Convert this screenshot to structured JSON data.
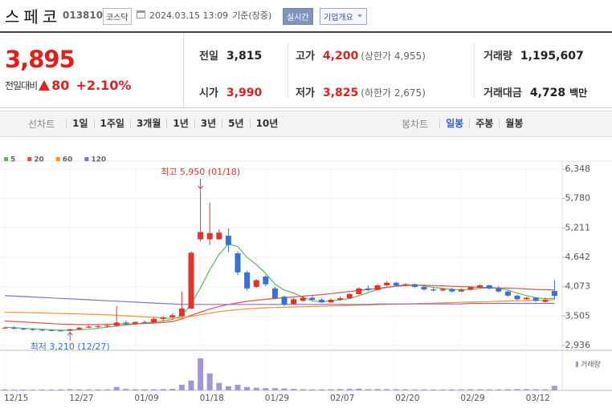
{
  "header": {
    "name": "스페코",
    "code": "013810",
    "market": "코스닥",
    "datetime": "2024.03.15 13:09",
    "basis": "기준(장중)",
    "realtime_button": "실시간",
    "company_button": "기업개요"
  },
  "quote": {
    "price": "3,895",
    "change_label": "전일대비",
    "change": "80",
    "rate": "+2.10%",
    "color": "#e0201c"
  },
  "stats": [
    {
      "label": "전일",
      "value": "3,815",
      "color": "#222222"
    },
    {
      "label": "고가",
      "value": "4,200",
      "note": "(상한가 4,955)",
      "color": "#e0201c"
    },
    {
      "label": "거래량",
      "value": "1,195,607",
      "color": "#222222"
    },
    {
      "label": "시가",
      "value": "3,990",
      "color": "#e0201c"
    },
    {
      "label": "저가",
      "value": "3,825",
      "note": "(하한가 2,675)",
      "color": "#e0201c"
    },
    {
      "label": "거래대금",
      "value": "4,728",
      "note": "백만",
      "color": "#222222"
    }
  ],
  "period_tabs": {
    "label": "선차트",
    "items": [
      "1일",
      "1주일",
      "3개월",
      "1년",
      "3년",
      "5년",
      "10년"
    ]
  },
  "candle_tabs": {
    "label": "봉차트",
    "items": [
      "일봉",
      "주봉",
      "월봉"
    ],
    "active": 0
  },
  "chart_data": {
    "type": "candlestick",
    "categories": [
      "12/15",
      null,
      null,
      null,
      null,
      null,
      null,
      "12/27",
      null,
      null,
      null,
      null,
      null,
      null,
      "01/09",
      null,
      null,
      null,
      null,
      null,
      null,
      "01/18",
      null,
      null,
      null,
      null,
      null,
      null,
      "01/29",
      null,
      null,
      null,
      null,
      null,
      null,
      "02/07",
      null,
      null,
      null,
      null,
      null,
      null,
      "02/20",
      null,
      null,
      null,
      null,
      null,
      null,
      "02/29",
      null,
      null,
      null,
      null,
      null,
      null,
      "03/12",
      null,
      null,
      null
    ],
    "open": [
      3270,
      3280,
      3260,
      3250,
      3240,
      3230,
      3225,
      3220,
      3250,
      3280,
      3300,
      3310,
      3320,
      3380,
      3360,
      3390,
      3380,
      3450,
      3480,
      3500,
      3650,
      4990,
      4990,
      4990,
      5060,
      4720,
      4350,
      4070,
      4270,
      4040,
      3880,
      3740,
      3800,
      3860,
      3820,
      3770,
      3820,
      3850,
      3930,
      4040,
      4010,
      4100,
      4150,
      4100,
      4120,
      4070,
      4020,
      4000,
      4030,
      3980,
      4020,
      4060,
      4100,
      4040,
      3980,
      3900,
      3830,
      3860,
      3780,
      3990
    ],
    "high": [
      3300,
      3310,
      3280,
      3270,
      3260,
      3250,
      3240,
      3260,
      3290,
      3320,
      3330,
      3340,
      3700,
      3420,
      3400,
      3420,
      3480,
      3500,
      3560,
      3980,
      4760,
      5950,
      5700,
      5180,
      5200,
      4760,
      4380,
      4220,
      4300,
      4070,
      3900,
      3850,
      3880,
      3900,
      3850,
      3850,
      3880,
      3950,
      4060,
      4100,
      4120,
      4180,
      4170,
      4140,
      4130,
      4100,
      4060,
      4050,
      4050,
      4040,
      4080,
      4120,
      4110,
      4090,
      4000,
      3920,
      3870,
      3870,
      3860,
      4200
    ],
    "low": [
      3250,
      3250,
      3230,
      3220,
      3215,
      3215,
      3215,
      3210,
      3240,
      3270,
      3280,
      3290,
      3300,
      3330,
      3340,
      3360,
      3370,
      3400,
      3460,
      3480,
      3640,
      4950,
      4880,
      4980,
      4740,
      4300,
      4000,
      4050,
      4080,
      3830,
      3700,
      3720,
      3780,
      3800,
      3760,
      3760,
      3800,
      3840,
      3920,
      3990,
      4000,
      4080,
      4080,
      4080,
      4050,
      4000,
      3980,
      3980,
      3960,
      3970,
      4000,
      4040,
      4020,
      3960,
      3880,
      3810,
      3820,
      3780,
      3770,
      3825
    ],
    "close": [
      3280,
      3260,
      3250,
      3240,
      3230,
      3225,
      3220,
      3250,
      3280,
      3300,
      3310,
      3320,
      3380,
      3360,
      3390,
      3380,
      3450,
      3480,
      3520,
      3650,
      4730,
      5130,
      5110,
      5120,
      4880,
      4350,
      4040,
      4200,
      4120,
      3850,
      3730,
      3830,
      3860,
      3820,
      3770,
      3820,
      3850,
      3930,
      4040,
      4010,
      4100,
      4150,
      4100,
      4120,
      4070,
      4020,
      4000,
      4030,
      3980,
      4020,
      4060,
      4100,
      4040,
      3980,
      3900,
      3830,
      3860,
      3800,
      3815,
      3895
    ],
    "up_color": "#e0352b",
    "down_color": "#3a6fd6",
    "ma": [
      {
        "name": "5",
        "color": "#5cb85c",
        "values": [
          3290,
          3280,
          3270,
          3260,
          3250,
          3240,
          3230,
          3230,
          3240,
          3250,
          3270,
          3290,
          3310,
          3330,
          3350,
          3370,
          3390,
          3410,
          3440,
          3510,
          3740,
          4050,
          4400,
          4700,
          4900,
          4850,
          4640,
          4500,
          4330,
          4120,
          4010,
          3950,
          3870,
          3800,
          3780,
          3800,
          3820,
          3840,
          3900,
          3960,
          4020,
          4060,
          4090,
          4110,
          4110,
          4090,
          4060,
          4040,
          4020,
          4010,
          4020,
          4040,
          4050,
          4040,
          4010,
          3950,
          3900,
          3860,
          3840,
          3850
        ]
      },
      {
        "name": "20",
        "color": "#e0504a",
        "values": [
          3410,
          3400,
          3390,
          3380,
          3370,
          3360,
          3350,
          3345,
          3340,
          3340,
          3340,
          3345,
          3350,
          3350,
          3355,
          3360,
          3370,
          3380,
          3400,
          3450,
          3520,
          3580,
          3640,
          3690,
          3730,
          3760,
          3790,
          3810,
          3830,
          3845,
          3860,
          3875,
          3890,
          3905,
          3920,
          3940,
          3960,
          3980,
          4000,
          4020,
          4040,
          4060,
          4080,
          4095,
          4100,
          4100,
          4095,
          4090,
          4080,
          4075,
          4070,
          4060,
          4055,
          4050,
          4045,
          4040,
          4030,
          4020,
          4015,
          4010
        ]
      },
      {
        "name": "60",
        "color": "#f0932b",
        "values": [
          3580,
          3575,
          3575,
          3570,
          3565,
          3560,
          3555,
          3550,
          3545,
          3540,
          3535,
          3530,
          3520,
          3510,
          3500,
          3490,
          3480,
          3470,
          3460,
          3470,
          3500,
          3530,
          3560,
          3590,
          3610,
          3630,
          3645,
          3655,
          3665,
          3670,
          3675,
          3680,
          3685,
          3690,
          3695,
          3700,
          3705,
          3710,
          3715,
          3720,
          3725,
          3730,
          3735,
          3740,
          3745,
          3750,
          3755,
          3760,
          3765,
          3770,
          3775,
          3780,
          3785,
          3790,
          3795,
          3800,
          3805,
          3810,
          3815,
          3820
        ]
      },
      {
        "name": "120",
        "color": "#8e6bcf",
        "values": [
          3901,
          3892,
          3883,
          3874,
          3865,
          3856,
          3847,
          3838,
          3829,
          3820,
          3811,
          3802,
          3793,
          3784,
          3775,
          3766,
          3757,
          3748,
          3739,
          3730,
          3730,
          3730,
          3730,
          3730,
          3730,
          3730,
          3730,
          3730,
          3730,
          3730,
          3730,
          3730,
          3730,
          3730,
          3730,
          3730,
          3730,
          3730,
          3730,
          3730,
          3740,
          3740,
          3740,
          3740,
          3740,
          3740,
          3740,
          3740,
          3740,
          3740,
          3750,
          3750,
          3750,
          3750,
          3750,
          3750,
          3750,
          3750,
          3750,
          3750
        ]
      }
    ],
    "volume": {
      "name": "거래량",
      "color": "#a596d4",
      "ylim": [
        0,
        10000000
      ],
      "values": [
        250000,
        200000,
        220000,
        180000,
        200000,
        210000,
        250000,
        300000,
        280000,
        260000,
        240000,
        260000,
        900000,
        400000,
        300000,
        280000,
        300000,
        350000,
        400000,
        1500000,
        2600000,
        8500000,
        4500000,
        2000000,
        1100000,
        1500000,
        900000,
        700000,
        600000,
        600000,
        500000,
        400000,
        300000,
        280000,
        260000,
        300000,
        350000,
        400000,
        450000,
        300000,
        350000,
        320000,
        300000,
        280000,
        260000,
        250000,
        240000,
        230000,
        250000,
        260000,
        300000,
        280000,
        260000,
        270000,
        300000,
        350000,
        320000,
        300000,
        280000,
        1195607
      ]
    },
    "ylim": [
      2843,
      6472
    ],
    "yticks": [
      {
        "value": 6348,
        "label": "6,348"
      },
      {
        "value": 5780,
        "label": "5,780"
      },
      {
        "value": 5211,
        "label": "5,211"
      },
      {
        "value": 4642,
        "label": "4,642"
      },
      {
        "value": 4073,
        "label": "4,073"
      },
      {
        "value": 3505,
        "label": "3,505"
      },
      {
        "value": 2936,
        "label": "2,936"
      }
    ],
    "high_label": "최고 5,950 (01/18)",
    "low_label": "최저 3,210 (12/27)",
    "grid": true
  }
}
